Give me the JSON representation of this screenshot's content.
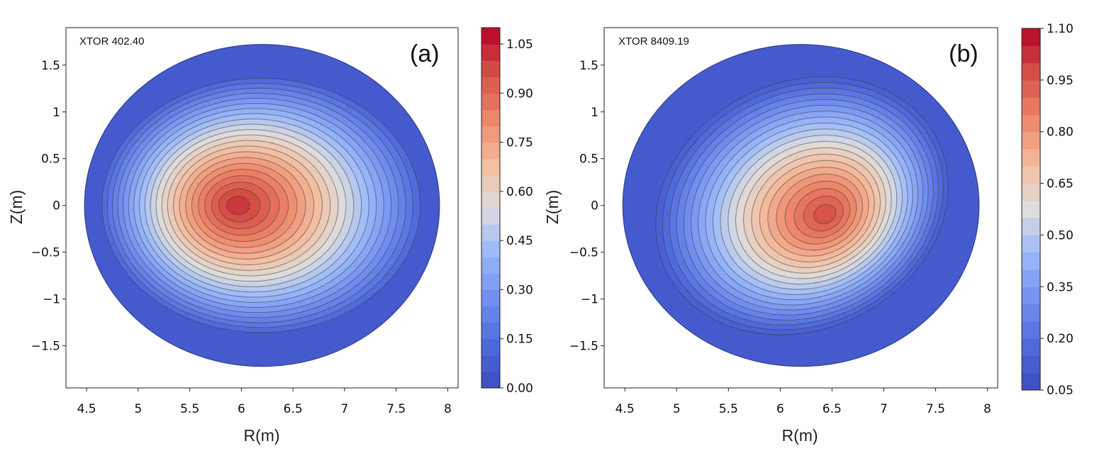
{
  "chart_data": [
    {
      "type": "heatmap",
      "panel_label": "(a)",
      "annotation": "XTOR 402.40",
      "xlabel": "R(m)",
      "ylabel": "Z(m)",
      "xlim": [
        4.3,
        8.1
      ],
      "ylim": [
        -1.95,
        1.9
      ],
      "x_ticks": [
        "4.5",
        "5",
        "5.5",
        "6",
        "6.5",
        "7",
        "7.5",
        "8"
      ],
      "x_tick_values": [
        4.5,
        5,
        5.5,
        6,
        6.5,
        7,
        7.5,
        8
      ],
      "y_ticks": [
        "1.5",
        "1",
        "0.5",
        "0",
        "−0.5",
        "−1",
        "−1.5"
      ],
      "y_tick_values": [
        1.5,
        1,
        0.5,
        0,
        -0.5,
        -1,
        -1.5
      ],
      "colorbar": {
        "min": 0.0,
        "max": 1.1,
        "ticks": [
          "0.00",
          "0.15",
          "0.30",
          "0.45",
          "0.60",
          "0.75",
          "0.90",
          "1.05"
        ],
        "tick_values": [
          0.0,
          0.15,
          0.3,
          0.45,
          0.6,
          0.75,
          0.9,
          1.05
        ],
        "levels": 22
      },
      "field": {
        "domain_center": [
          6.2,
          0.0
        ],
        "domain_radius": 1.72,
        "peak_location": [
          5.95,
          0.0
        ],
        "peak_value": 1.05,
        "edge_value": 0.1
      }
    },
    {
      "type": "heatmap",
      "panel_label": "(b)",
      "annotation": "XTOR 8409.19",
      "xlabel": "R(m)",
      "ylabel": "Z(m)",
      "xlim": [
        4.3,
        8.1
      ],
      "ylim": [
        -1.95,
        1.9
      ],
      "x_ticks": [
        "4.5",
        "5",
        "5.5",
        "6",
        "6.5",
        "7",
        "7.5",
        "8"
      ],
      "x_tick_values": [
        4.5,
        5,
        5.5,
        6,
        6.5,
        7,
        7.5,
        8
      ],
      "y_ticks": [
        "1.5",
        "1",
        "0.5",
        "0",
        "−0.5",
        "−1",
        "−1.5"
      ],
      "y_tick_values": [
        1.5,
        1,
        0.5,
        0,
        -0.5,
        -1,
        -1.5
      ],
      "colorbar": {
        "min": 0.05,
        "max": 1.1,
        "ticks": [
          "0.05",
          "0.20",
          "0.35",
          "0.50",
          "0.65",
          "0.80",
          "0.95",
          "1.10"
        ],
        "tick_values": [
          0.05,
          0.2,
          0.35,
          0.5,
          0.65,
          0.8,
          0.95,
          1.1
        ],
        "levels": 21
      },
      "field": {
        "domain_center": [
          6.2,
          0.0
        ],
        "domain_radius": 1.72,
        "peak_location": [
          6.45,
          -0.1
        ],
        "peak_value": 1.0,
        "edge_value": 0.1
      }
    }
  ]
}
